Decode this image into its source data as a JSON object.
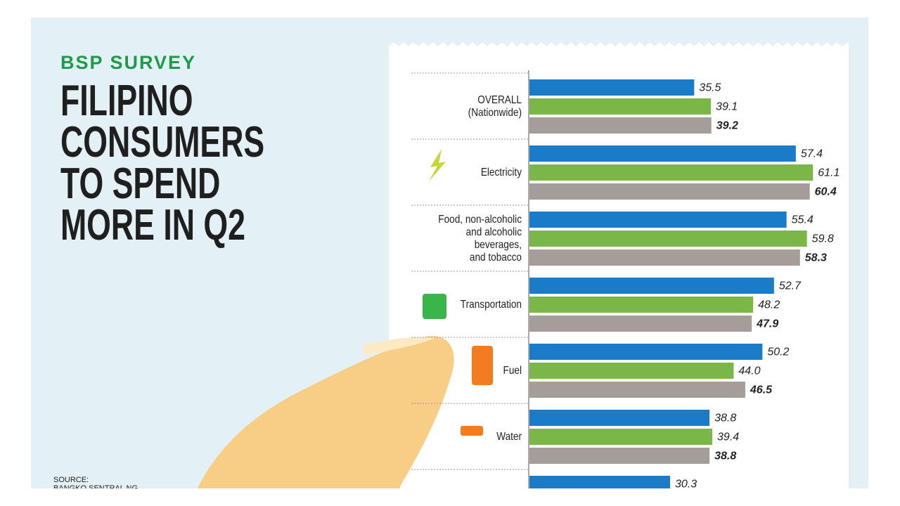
{
  "header": {
    "kicker": "BSP SURVEY"
  },
  "footer": {
    "source": "SOURCE:\nBANGKO SENTRAL NG"
  },
  "chart_data": {
    "type": "bar",
    "orientation": "horizontal",
    "title": "FILIPINO\nCONSUMERS\nTO SPEND\nMORE IN Q2",
    "categories": [
      "OVERALL\n(Nationwide)",
      "Electricity",
      "Food, non-alcoholic\nand alcoholic\nbeverages,\nand tobacco",
      "Transportation",
      "Fuel",
      "Water",
      null
    ],
    "series": [
      {
        "color": "#1a7bc9",
        "values": [
          35.5,
          57.4,
          55.4,
          52.7,
          50.2,
          38.8,
          30.3
        ],
        "value_labels": [
          "35.5",
          "57.4",
          "55.4",
          "52.7",
          "50.2",
          "38.8",
          "30.3"
        ]
      },
      {
        "color": "#7ab648",
        "values": [
          39.1,
          61.1,
          59.8,
          48.2,
          44.0,
          39.4,
          null
        ],
        "value_labels": [
          "39.1",
          "61.1",
          "59.8",
          "48.2",
          "44.0",
          "39.4",
          null
        ]
      },
      {
        "color": "#a59d99",
        "values": [
          39.2,
          60.4,
          58.3,
          47.9,
          46.5,
          38.8,
          null
        ],
        "value_labels": [
          "39.2",
          "60.4",
          "58.3",
          "47.9",
          "46.5",
          "38.8",
          null
        ]
      }
    ]
  }
}
